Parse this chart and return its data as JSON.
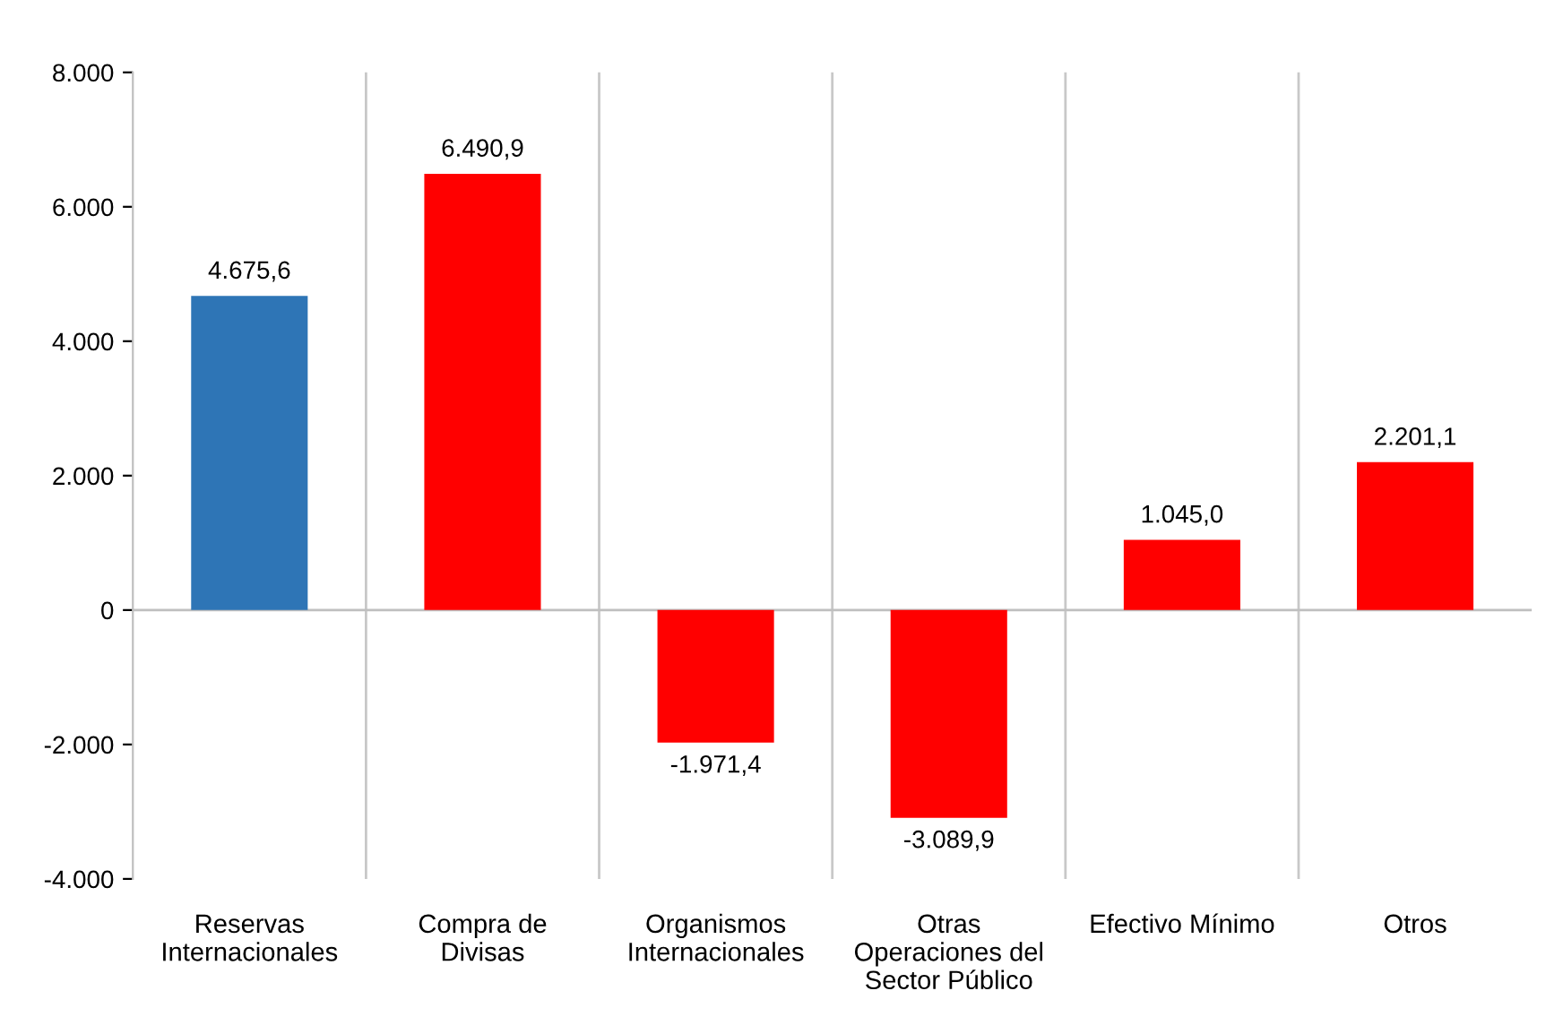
{
  "chart_data": {
    "type": "bar",
    "categories": [
      "Reservas\nInternacionales",
      "Compra de\nDivisas",
      "Organismos\nInternacionales",
      "Otras\nOperaciones del\nSector Público",
      "Efectivo Mínimo",
      "Otros"
    ],
    "values": [
      4675.6,
      6490.9,
      -1971.4,
      -3089.9,
      1045.0,
      2201.1
    ],
    "colors": [
      "#2e75b6",
      "#ff0000",
      "#ff0000",
      "#ff0000",
      "#ff0000",
      "#ff0000"
    ],
    "value_labels": [
      "4.675,6",
      "6.490,9",
      "-1.971,4",
      "-3.089,9",
      "1.045,0",
      "2.201,1"
    ],
    "ylim": [
      -4000,
      8000
    ],
    "yticks": [
      {
        "value": 8000,
        "label": "8.000"
      },
      {
        "value": 6000,
        "label": "6.000"
      },
      {
        "value": 4000,
        "label": "4.000"
      },
      {
        "value": 2000,
        "label": "2.000"
      },
      0,
      {
        "value": -2000,
        "label": "-2.000"
      },
      {
        "value": -4000,
        "label": "-4.000"
      }
    ],
    "grid": "x"
  }
}
